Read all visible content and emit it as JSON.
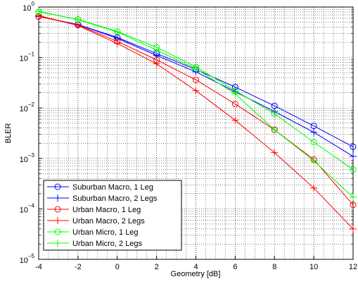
{
  "chart_data": {
    "type": "line",
    "x_label": "Geometry [dB]",
    "y_label": "BLER",
    "x": [
      -4,
      -2,
      0,
      2,
      4,
      6,
      8,
      10,
      12
    ],
    "series": [
      {
        "name": "Suburban Macro, 1 Leg",
        "color": "#0000ff",
        "marker": "o",
        "values": [
          0.65,
          0.45,
          0.25,
          0.12,
          0.058,
          0.026,
          0.011,
          0.0044,
          0.0017
        ]
      },
      {
        "name": "Suburban Macro, 2 Legs",
        "color": "#0000ff",
        "marker": "+",
        "values": [
          0.65,
          0.45,
          0.24,
          0.11,
          0.052,
          0.021,
          0.0085,
          0.0033,
          0.0011
        ]
      },
      {
        "name": "Urban Macro, 1 Leg",
        "color": "#ff0000",
        "marker": "o",
        "values": [
          0.65,
          0.44,
          0.21,
          0.09,
          0.036,
          0.012,
          0.0037,
          0.00095,
          0.00012
        ]
      },
      {
        "name": "Urban Macro, 2 Legs",
        "color": "#ff0000",
        "marker": "+",
        "values": [
          0.68,
          0.43,
          0.19,
          0.075,
          0.022,
          0.0057,
          0.0013,
          0.00026,
          4e-05
        ]
      },
      {
        "name": "Urban Micro, 1 Leg",
        "color": "#00ff00",
        "marker": "o",
        "values": [
          0.8,
          0.57,
          0.33,
          0.16,
          0.065,
          0.022,
          0.0077,
          0.0021,
          0.0006
        ]
      },
      {
        "name": "Urban Micro, 2 Legs",
        "color": "#00ff00",
        "marker": "+",
        "values": [
          0.82,
          0.56,
          0.32,
          0.14,
          0.06,
          0.019,
          0.0037,
          0.0009,
          0.00017
        ]
      }
    ],
    "xlim": [
      -4,
      12
    ],
    "xticks": [
      -4,
      -2,
      0,
      2,
      4,
      6,
      8,
      10,
      12
    ],
    "ylim": [
      1e-05,
      1
    ],
    "y_scale": "log",
    "yticks": [
      {
        "value": 1e-05,
        "label": "10",
        "power": "−5"
      },
      {
        "value": 0.0001,
        "label": "10",
        "power": "−4"
      },
      {
        "value": 0.001,
        "label": "10",
        "power": "−3"
      },
      {
        "value": 0.01,
        "label": "10",
        "power": "−2"
      },
      {
        "value": 0.1,
        "label": "10",
        "power": "−1"
      },
      {
        "value": 1,
        "label": "10",
        "power": "0"
      }
    ],
    "grid": true,
    "minor_grid": true,
    "legend_position": "lower-left"
  }
}
